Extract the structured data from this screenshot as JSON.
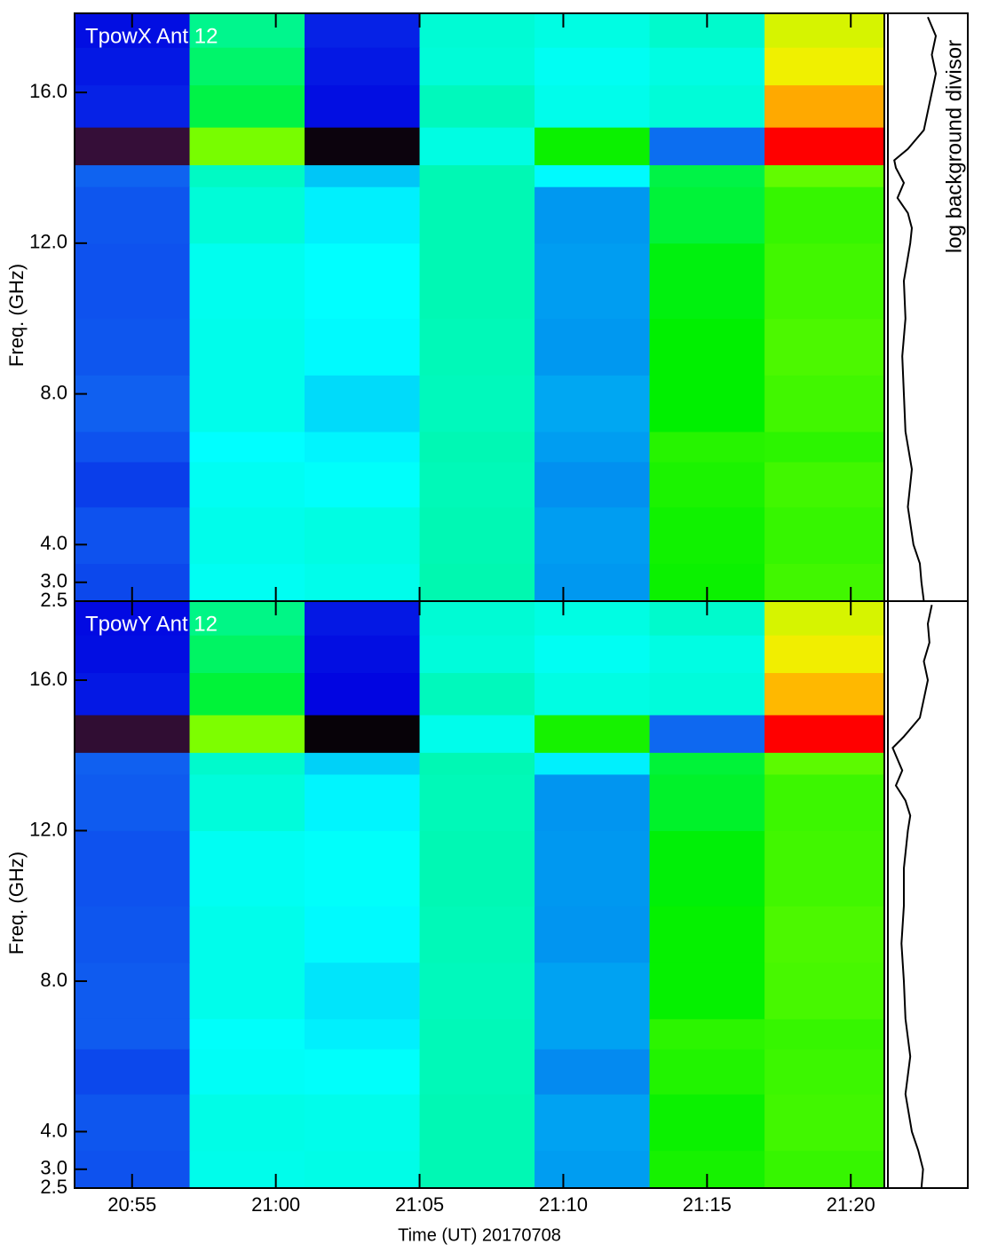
{
  "chart_data": [
    {
      "type": "heatmap",
      "title": "TpowX Ant 12",
      "y_label": "Freq. (GHz)",
      "xlim": [
        "20:53:00",
        "21:21:10"
      ],
      "ylim": [
        2.5,
        18.1
      ],
      "xticks": [
        "20:55",
        "21:00",
        "21:05",
        "21:10",
        "21:15",
        "21:20"
      ],
      "yticks": [
        {
          "value": 16,
          "label": "16.0"
        },
        {
          "value": 12,
          "label": "12.0"
        },
        {
          "value": 8,
          "label": "8.0"
        },
        {
          "value": 4,
          "label": "4.0"
        },
        {
          "value": 3,
          "label": "3.0"
        },
        2.5
      ],
      "x_edges": [
        "20:53:00",
        "20:57:00",
        "21:01:00",
        "21:05:00",
        "21:09:00",
        "21:13:00",
        "21:17:00",
        "21:21:10"
      ],
      "y_edges": [
        2.5,
        3.5,
        5,
        6.2,
        7,
        8.5,
        10,
        12,
        13.5,
        14.08,
        15.08,
        16.2,
        17.2,
        18.1
      ],
      "z": [
        [
          70,
          118,
          120,
          135,
          95,
          162,
          172
        ],
        [
          72,
          120,
          122,
          134,
          96,
          163,
          170
        ],
        [
          68,
          118,
          116,
          133,
          92,
          165,
          172
        ],
        [
          72,
          115,
          113,
          134,
          96,
          167,
          168
        ],
        [
          75,
          120,
          108,
          132,
          98,
          160,
          172
        ],
        [
          73,
          120,
          114,
          133,
          95,
          160,
          174
        ],
        [
          72,
          119,
          115,
          134,
          96,
          158,
          172
        ],
        [
          73,
          125,
          112,
          134,
          95,
          152,
          170
        ],
        [
          76,
          130,
          104,
          134,
          114,
          150,
          178
        ],
        [
          22,
          182,
          5,
          122,
          162,
          80,
          250
        ],
        [
          62,
          150,
          58,
          132,
          120,
          125,
          228
        ],
        [
          60,
          145,
          60,
          125,
          118,
          122,
          205
        ],
        [
          58,
          140,
          62,
          126,
          122,
          128,
          200
        ]
      ],
      "colorscale": [
        {
          "value": 0,
          "color": "#000000"
        },
        {
          "value": 25,
          "color": "#3c1040"
        },
        {
          "value": 55,
          "color": "#0000e0"
        },
        {
          "value": 75,
          "color": "#1060f0"
        },
        {
          "value": 95,
          "color": "#0098f0"
        },
        {
          "value": 115,
          "color": "#00ffff"
        },
        {
          "value": 135,
          "color": "#00f8b0"
        },
        {
          "value": 160,
          "color": "#00f000"
        },
        {
          "value": 185,
          "color": "#88ff00"
        },
        {
          "value": 205,
          "color": "#f0f000"
        },
        {
          "value": 225,
          "color": "#ffc000"
        },
        {
          "value": 250,
          "color": "#ff0000"
        }
      ],
      "background_label": "log background divisor",
      "background": {
        "xlim": [
          0,
          1
        ],
        "freq": [
          18,
          17.5,
          17,
          16.5,
          16,
          15.5,
          15,
          14.5,
          14.2,
          14,
          13.6,
          13.2,
          12.8,
          12.4,
          12,
          11,
          10,
          9,
          8,
          7,
          6,
          5,
          4,
          3.5,
          3,
          2.5
        ],
        "values": [
          0.5,
          0.6,
          0.55,
          0.6,
          0.55,
          0.5,
          0.45,
          0.25,
          0.08,
          0.1,
          0.2,
          0.12,
          0.25,
          0.3,
          0.28,
          0.2,
          0.22,
          0.18,
          0.2,
          0.22,
          0.3,
          0.25,
          0.32,
          0.4,
          0.42,
          0.45
        ]
      }
    },
    {
      "type": "heatmap",
      "title": "TpowY Ant 12",
      "y_label": "Freq. (GHz)",
      "x_label": "Time (UT) 20170708",
      "xlim": [
        "20:53:00",
        "21:21:10"
      ],
      "ylim": [
        2.5,
        18.1
      ],
      "xticks": [
        "20:55",
        "21:00",
        "21:05",
        "21:10",
        "21:15",
        "21:20"
      ],
      "yticks": [
        {
          "value": 16,
          "label": "16.0"
        },
        {
          "value": 12,
          "label": "12.0"
        },
        {
          "value": 8,
          "label": "8.0"
        },
        {
          "value": 4,
          "label": "4.0"
        },
        {
          "value": 3,
          "label": "3.0"
        },
        2.5
      ],
      "x_edges": [
        "20:53:00",
        "20:57:00",
        "21:01:00",
        "21:05:00",
        "21:09:00",
        "21:13:00",
        "21:17:00",
        "21:21:10"
      ],
      "y_edges": [
        2.5,
        3.5,
        5,
        6.2,
        7,
        8.5,
        10,
        12,
        13.5,
        14.08,
        15.08,
        16.2,
        17.2,
        18.1
      ],
      "z": [
        [
          72,
          120,
          121,
          134,
          96,
          164,
          170
        ],
        [
          73,
          121,
          120,
          134,
          97,
          162,
          172
        ],
        [
          70,
          117,
          116,
          133,
          90,
          166,
          171
        ],
        [
          74,
          116,
          112,
          133,
          97,
          168,
          170
        ],
        [
          74,
          120,
          110,
          132,
          97,
          161,
          173
        ],
        [
          73,
          120,
          114,
          133,
          94,
          161,
          174
        ],
        [
          72,
          118,
          116,
          134,
          95,
          159,
          172
        ],
        [
          74,
          124,
          113,
          133,
          94,
          154,
          171
        ],
        [
          75,
          128,
          106,
          134,
          112,
          152,
          177
        ],
        [
          20,
          183,
          3,
          120,
          164,
          78,
          250
        ],
        [
          60,
          152,
          56,
          132,
          122,
          124,
          226
        ],
        [
          58,
          146,
          58,
          124,
          118,
          122,
          206
        ],
        [
          57,
          141,
          60,
          126,
          122,
          128,
          200
        ]
      ],
      "colorscale": [
        {
          "value": 0,
          "color": "#000000"
        },
        {
          "value": 25,
          "color": "#3c1040"
        },
        {
          "value": 55,
          "color": "#0000e0"
        },
        {
          "value": 75,
          "color": "#1060f0"
        },
        {
          "value": 95,
          "color": "#0098f0"
        },
        {
          "value": 115,
          "color": "#00ffff"
        },
        {
          "value": 135,
          "color": "#00f8b0"
        },
        {
          "value": 160,
          "color": "#00f000"
        },
        {
          "value": 185,
          "color": "#88ff00"
        },
        {
          "value": 205,
          "color": "#f0f000"
        },
        {
          "value": 225,
          "color": "#ffc000"
        },
        {
          "value": 250,
          "color": "#ff0000"
        }
      ],
      "background": {
        "xlim": [
          0,
          1
        ],
        "freq": [
          18,
          17.5,
          17,
          16.5,
          16,
          15.5,
          15,
          14.5,
          14.2,
          14,
          13.6,
          13.2,
          12.8,
          12.4,
          12,
          11,
          10,
          9,
          8,
          7,
          6,
          5,
          4,
          3.5,
          3,
          2.5
        ],
        "values": [
          0.55,
          0.5,
          0.52,
          0.45,
          0.5,
          0.45,
          0.4,
          0.2,
          0.06,
          0.1,
          0.18,
          0.1,
          0.22,
          0.28,
          0.25,
          0.2,
          0.2,
          0.17,
          0.2,
          0.22,
          0.28,
          0.22,
          0.3,
          0.38,
          0.44,
          0.42
        ]
      }
    }
  ]
}
